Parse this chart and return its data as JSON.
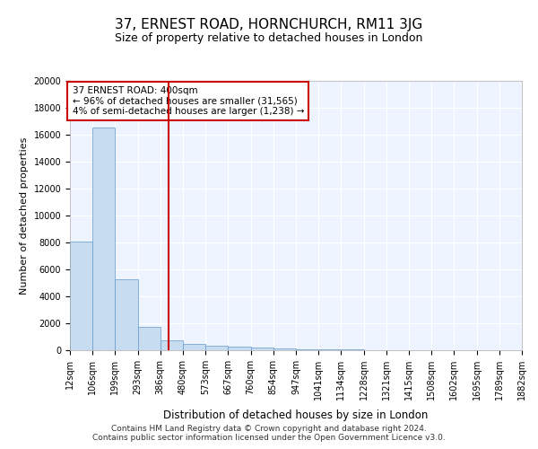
{
  "title": "37, ERNEST ROAD, HORNCHURCH, RM11 3JG",
  "subtitle": "Size of property relative to detached houses in London",
  "xlabel": "Distribution of detached houses by size in London",
  "ylabel": "Number of detached properties",
  "bin_labels": [
    "12sqm",
    "106sqm",
    "199sqm",
    "293sqm",
    "386sqm",
    "480sqm",
    "573sqm",
    "667sqm",
    "760sqm",
    "854sqm",
    "947sqm",
    "1041sqm",
    "1134sqm",
    "1228sqm",
    "1321sqm",
    "1415sqm",
    "1508sqm",
    "1602sqm",
    "1695sqm",
    "1789sqm",
    "1882sqm"
  ],
  "bar_heights": [
    8100,
    16500,
    5300,
    1750,
    750,
    500,
    350,
    250,
    200,
    150,
    100,
    50,
    50,
    30,
    20,
    10,
    5,
    5,
    5,
    5
  ],
  "bar_color": "#C8DCF0",
  "bar_edge_color": "#6699CC",
  "background_color": "#EEF4FF",
  "grid_color": "#FFFFFF",
  "annotation_line1": "37 ERNEST ROAD: 400sqm",
  "annotation_line2": "← 96% of detached houses are smaller (31,565)",
  "annotation_line3": "4% of semi-detached houses are larger (1,238) →",
  "annotation_box_color": "#FFFFFF",
  "annotation_box_edge_color": "#CC0000",
  "red_line_x": 4.35,
  "ylim": [
    0,
    20000
  ],
  "yticks": [
    0,
    2000,
    4000,
    6000,
    8000,
    10000,
    12000,
    14000,
    16000,
    18000,
    20000
  ],
  "footer_text": "Contains HM Land Registry data © Crown copyright and database right 2024.\nContains public sector information licensed under the Open Government Licence v3.0.",
  "title_fontsize": 11,
  "subtitle_fontsize": 9,
  "axis_label_fontsize": 8,
  "tick_fontsize": 7,
  "annotation_fontsize": 7.5
}
